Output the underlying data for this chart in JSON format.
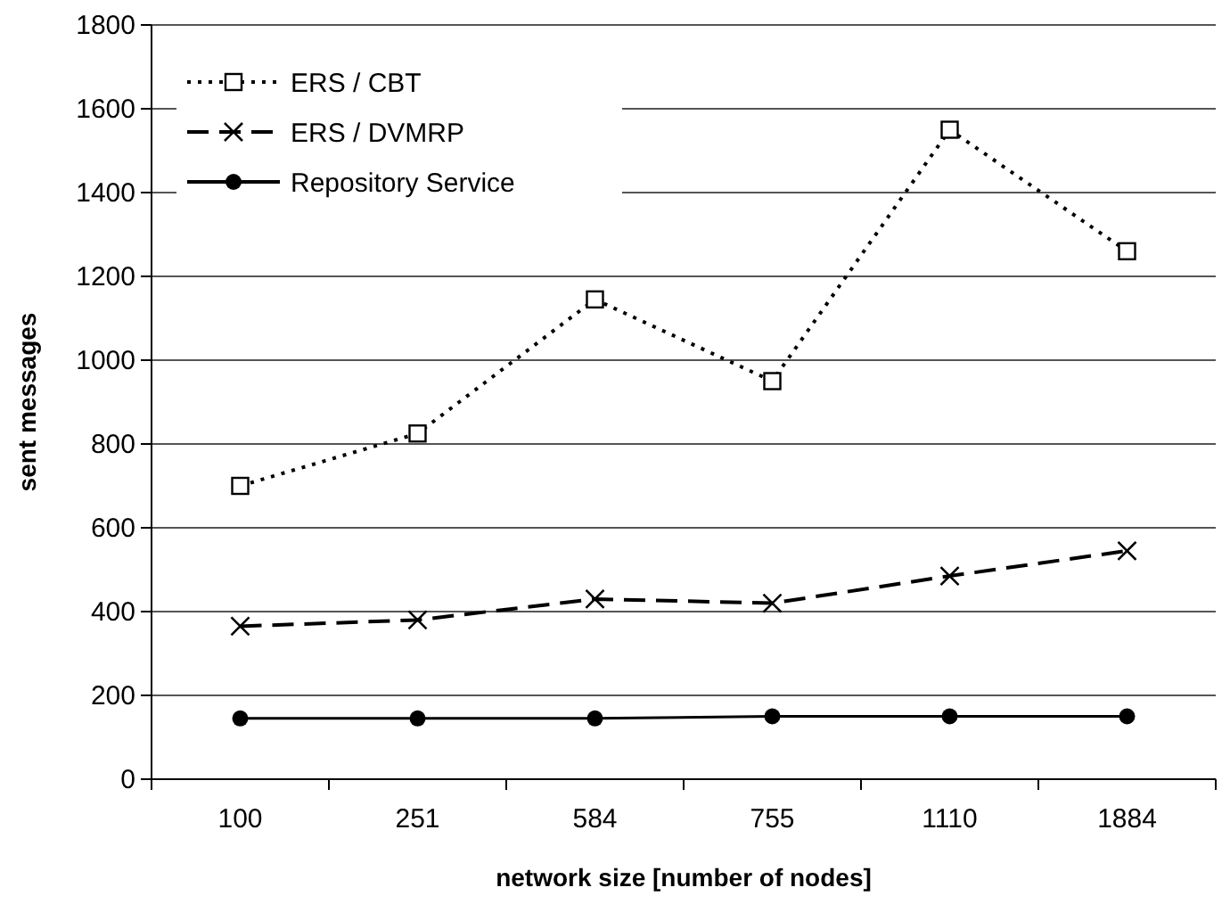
{
  "chart_data": {
    "type": "line",
    "xlabel": "network size [number of nodes]",
    "ylabel": "sent messages",
    "categories": [
      "100",
      "251",
      "584",
      "755",
      "1110",
      "1884"
    ],
    "ylim": [
      0,
      1800
    ],
    "yticks": [
      0,
      200,
      400,
      600,
      800,
      1000,
      1200,
      1400,
      1600,
      1800
    ],
    "grid": "y",
    "legend": "top left",
    "series": [
      {
        "name": "ERS / CBT",
        "color": "#000000",
        "marker": "square",
        "line_style": "dotted",
        "values": [
          700,
          825,
          1145,
          950,
          1550,
          1260
        ]
      },
      {
        "name": "ERS / DVMRP",
        "color": "#000000",
        "marker": "cross",
        "line_style": "dashed",
        "values": [
          365,
          380,
          430,
          420,
          485,
          545
        ]
      },
      {
        "name": "Repository Service",
        "color": "#000000",
        "marker": "circle",
        "line_style": "solid",
        "values": [
          145,
          145,
          145,
          150,
          150,
          150
        ]
      }
    ]
  }
}
